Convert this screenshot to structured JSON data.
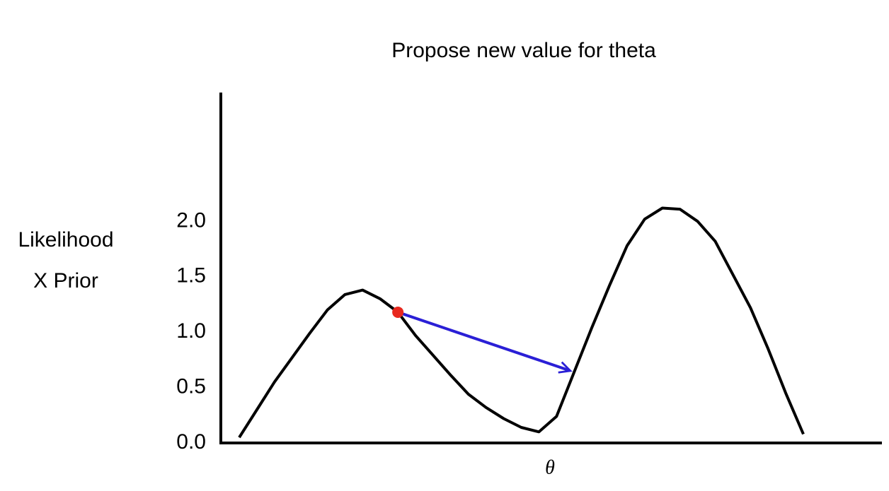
{
  "chart_data": {
    "type": "line",
    "title": "Propose new value for theta",
    "ylabel": [
      "Likelihood",
      "X Prior"
    ],
    "xlabel": "θ",
    "categories": [
      null,
      null,
      null,
      null,
      null,
      null,
      null,
      null,
      null,
      null,
      null,
      null,
      null,
      null,
      null,
      null,
      null,
      null,
      null,
      null,
      null,
      null,
      null,
      null,
      null,
      null,
      null,
      null,
      null,
      null,
      null,
      null,
      null
    ],
    "values": [
      0.05,
      0.3,
      0.55,
      0.77,
      0.99,
      1.2,
      1.34,
      1.38,
      1.3,
      1.18,
      0.97,
      0.79,
      0.61,
      0.44,
      0.32,
      0.22,
      0.14,
      0.1,
      0.24,
      0.64,
      1.04,
      1.42,
      1.78,
      2.02,
      2.12,
      2.11,
      2.0,
      1.82,
      1.52,
      1.22,
      0.85,
      0.45,
      0.08
    ],
    "color": "#000000",
    "point_color": "#e8281e",
    "arrow_color": "#2a1fd6",
    "ylim": [
      0,
      3.15
    ],
    "yticks": [
      {
        "value": 0,
        "label": "0.0"
      },
      {
        "value": 0.5,
        "label": "0.5"
      },
      {
        "value": 1,
        "label": "1.0"
      },
      {
        "value": 1.5,
        "label": "1.5"
      },
      {
        "value": 2,
        "label": "2.0"
      }
    ],
    "grid": false
  }
}
